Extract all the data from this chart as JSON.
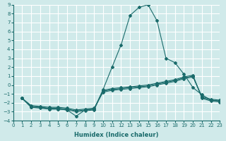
{
  "xlabel": "Humidex (Indice chaleur)",
  "ylabel": "",
  "background_color": "#d0eaea",
  "grid_color": "#ffffff",
  "line_color": "#1a6b6b",
  "xlim": [
    0,
    23
  ],
  "ylim": [
    -4,
    9
  ],
  "xticks": [
    0,
    1,
    2,
    3,
    4,
    5,
    6,
    7,
    8,
    9,
    10,
    11,
    12,
    13,
    14,
    15,
    16,
    17,
    18,
    19,
    20,
    21,
    22,
    23
  ],
  "yticks": [
    -4,
    -3,
    -2,
    -1,
    0,
    1,
    2,
    3,
    4,
    5,
    6,
    7,
    8,
    9
  ],
  "series": [
    [
      null,
      -1.5,
      -2.5,
      -2.5,
      -2.7,
      -2.7,
      -2.8,
      -3.5,
      -2.8,
      -2.7,
      -0.5,
      2.0,
      4.5,
      7.8,
      8.7,
      9.0,
      7.2,
      3.0,
      2.5,
      1.2,
      -0.3,
      -1.1,
      -1.7,
      -1.8
    ],
    [
      null,
      -1.5,
      -2.5,
      -2.6,
      -2.7,
      -2.7,
      -2.8,
      -3.0,
      -2.9,
      -2.8,
      -0.6,
      -0.4,
      -0.3,
      -0.2,
      -0.1,
      0.0,
      0.2,
      0.4,
      0.6,
      0.9,
      1.1,
      -1.5,
      -1.8,
      -1.9
    ],
    [
      null,
      -1.5,
      -2.4,
      -2.5,
      -2.6,
      -2.6,
      -2.7,
      -2.9,
      -2.8,
      -2.7,
      -0.7,
      -0.5,
      -0.4,
      -0.3,
      -0.2,
      -0.1,
      0.1,
      0.3,
      0.5,
      0.8,
      1.0,
      -1.4,
      -1.7,
      -1.8
    ],
    [
      null,
      -1.5,
      -2.3,
      -2.4,
      -2.5,
      -2.5,
      -2.6,
      -2.8,
      -2.7,
      -2.6,
      -0.8,
      -0.6,
      -0.5,
      -0.4,
      -0.3,
      -0.2,
      0.0,
      0.2,
      0.4,
      0.7,
      0.9,
      -1.3,
      -1.6,
      -1.7
    ]
  ]
}
